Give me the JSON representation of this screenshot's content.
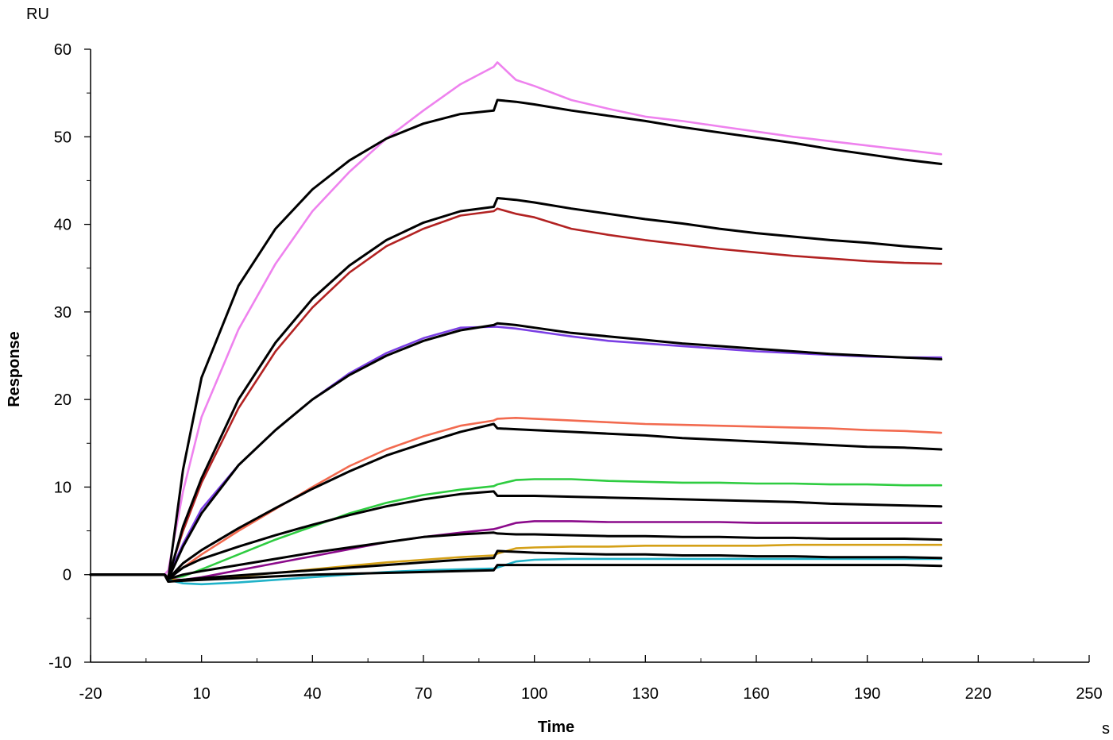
{
  "chart_data": {
    "type": "line",
    "title": "",
    "xlabel": "Time",
    "ylabel": "Response",
    "x_unit": "s",
    "y_unit": "RU",
    "xlim": [
      -20,
      250
    ],
    "ylim": [
      -10,
      60
    ],
    "x_ticks": [
      -20,
      10,
      40,
      70,
      100,
      130,
      160,
      190,
      220,
      250
    ],
    "y_ticks": [
      -10,
      0,
      10,
      20,
      30,
      40,
      50,
      60
    ],
    "grid": false,
    "legend": "none",
    "series": [
      {
        "color": "#ee82ee",
        "kind": "measured",
        "x": [
          -20,
          0,
          1,
          5,
          10,
          20,
          30,
          40,
          50,
          60,
          70,
          80,
          89,
          90,
          95,
          100,
          110,
          120,
          130,
          140,
          150,
          160,
          170,
          180,
          190,
          200,
          210
        ],
        "y": [
          0,
          0,
          0.5,
          9.5,
          18,
          28,
          35.5,
          41.5,
          46,
          49.8,
          53,
          56,
          58,
          58.5,
          56.5,
          55.8,
          54.2,
          53.2,
          52.3,
          51.8,
          51.2,
          50.6,
          50,
          49.5,
          49,
          48.5,
          48
        ]
      },
      {
        "color": "#b22222",
        "kind": "measured",
        "x": [
          -20,
          0,
          1,
          5,
          10,
          20,
          30,
          40,
          50,
          60,
          70,
          80,
          89,
          90,
          95,
          100,
          110,
          120,
          130,
          140,
          150,
          160,
          170,
          180,
          190,
          200,
          210
        ],
        "y": [
          0,
          0,
          -0.2,
          5,
          10.5,
          19,
          25.5,
          30.5,
          34.5,
          37.5,
          39.5,
          41,
          41.5,
          41.8,
          41.2,
          40.8,
          39.5,
          38.8,
          38.2,
          37.7,
          37.2,
          36.8,
          36.4,
          36.1,
          35.8,
          35.6,
          35.5
        ]
      },
      {
        "color": "#7b3fe4",
        "kind": "measured",
        "x": [
          -20,
          0,
          1,
          5,
          10,
          20,
          30,
          40,
          50,
          60,
          70,
          80,
          89,
          90,
          95,
          100,
          110,
          120,
          130,
          140,
          150,
          160,
          170,
          180,
          190,
          200,
          210
        ],
        "y": [
          0,
          0,
          -0.2,
          3.5,
          7.5,
          12.5,
          16.5,
          20,
          23,
          25.3,
          27,
          28.2,
          28.3,
          28.3,
          28.1,
          27.8,
          27.2,
          26.7,
          26.4,
          26.1,
          25.8,
          25.5,
          25.3,
          25.1,
          24.9,
          24.8,
          24.8
        ]
      },
      {
        "color": "#f26a4f",
        "kind": "measured",
        "x": [
          -20,
          0,
          1,
          5,
          10,
          20,
          30,
          40,
          50,
          60,
          70,
          80,
          89,
          90,
          95,
          100,
          110,
          120,
          130,
          140,
          150,
          160,
          170,
          180,
          190,
          200,
          210
        ],
        "y": [
          0,
          0,
          -0.3,
          0.8,
          2.3,
          5,
          7.5,
          10,
          12.4,
          14.3,
          15.8,
          17,
          17.6,
          17.8,
          17.9,
          17.8,
          17.6,
          17.4,
          17.2,
          17.1,
          17,
          16.9,
          16.8,
          16.7,
          16.5,
          16.4,
          16.2
        ]
      },
      {
        "color": "#2ecc40",
        "kind": "measured",
        "x": [
          -20,
          0,
          1,
          5,
          10,
          20,
          30,
          40,
          50,
          60,
          70,
          80,
          89,
          90,
          95,
          100,
          110,
          120,
          130,
          140,
          150,
          160,
          170,
          180,
          190,
          200,
          210
        ],
        "y": [
          0,
          0,
          -0.4,
          -0.2,
          0.6,
          2.3,
          4,
          5.5,
          7,
          8.2,
          9.1,
          9.7,
          10.1,
          10.3,
          10.8,
          10.9,
          10.9,
          10.7,
          10.6,
          10.5,
          10.5,
          10.4,
          10.4,
          10.3,
          10.3,
          10.2,
          10.2
        ]
      },
      {
        "color": "#8b0a8b",
        "kind": "measured",
        "x": [
          -20,
          0,
          1,
          5,
          10,
          20,
          30,
          40,
          50,
          60,
          70,
          80,
          89,
          90,
          95,
          100,
          110,
          120,
          130,
          140,
          150,
          160,
          170,
          180,
          190,
          200,
          210
        ],
        "y": [
          0,
          0,
          -0.5,
          -0.6,
          -0.3,
          0.5,
          1.3,
          2.1,
          2.9,
          3.7,
          4.3,
          4.8,
          5.2,
          5.3,
          5.9,
          6.1,
          6.1,
          6,
          6,
          6,
          6,
          5.9,
          5.9,
          5.9,
          5.9,
          5.9,
          5.9
        ]
      },
      {
        "color": "#d4a017",
        "kind": "measured",
        "x": [
          -20,
          0,
          1,
          5,
          10,
          20,
          30,
          40,
          50,
          60,
          70,
          80,
          89,
          90,
          95,
          100,
          110,
          120,
          130,
          140,
          150,
          160,
          170,
          180,
          190,
          200,
          210
        ],
        "y": [
          0,
          0,
          -0.5,
          -0.7,
          -0.6,
          -0.2,
          0.2,
          0.6,
          1,
          1.4,
          1.7,
          2,
          2.2,
          2.4,
          3,
          3.1,
          3.2,
          3.2,
          3.3,
          3.3,
          3.3,
          3.3,
          3.4,
          3.4,
          3.4,
          3.4,
          3.4
        ]
      },
      {
        "color": "#20b2c8",
        "kind": "measured",
        "x": [
          -20,
          0,
          1,
          5,
          10,
          20,
          30,
          40,
          50,
          60,
          70,
          80,
          89,
          90,
          95,
          100,
          110,
          120,
          130,
          140,
          150,
          160,
          170,
          180,
          190,
          200,
          210
        ],
        "y": [
          0,
          0,
          -0.6,
          -1,
          -1.1,
          -0.9,
          -0.6,
          -0.3,
          0,
          0.3,
          0.5,
          0.6,
          0.7,
          0.8,
          1.5,
          1.7,
          1.8,
          1.8,
          1.8,
          1.8,
          1.8,
          1.8,
          1.8,
          1.8,
          1.8,
          1.8,
          1.8
        ]
      },
      {
        "color": "#000000",
        "kind": "fit",
        "x": [
          -20,
          0,
          1,
          5,
          10,
          20,
          30,
          40,
          50,
          60,
          70,
          80,
          89,
          90,
          95,
          100,
          110,
          120,
          130,
          140,
          150,
          160,
          170,
          180,
          190,
          200,
          210
        ],
        "y": [
          0,
          0,
          -0.5,
          12,
          22.5,
          33,
          39.5,
          44,
          47.3,
          49.8,
          51.5,
          52.6,
          53,
          54.2,
          54,
          53.7,
          53,
          52.4,
          51.8,
          51.1,
          50.5,
          49.9,
          49.3,
          48.6,
          48,
          47.4,
          46.9
        ]
      },
      {
        "color": "#000000",
        "kind": "fit",
        "x": [
          -20,
          0,
          1,
          5,
          10,
          20,
          30,
          40,
          50,
          60,
          70,
          80,
          89,
          90,
          95,
          100,
          110,
          120,
          130,
          140,
          150,
          160,
          170,
          180,
          190,
          200,
          210
        ],
        "y": [
          0,
          0,
          -0.5,
          5.5,
          11,
          20,
          26.5,
          31.5,
          35.3,
          38.2,
          40.2,
          41.5,
          42,
          43,
          42.8,
          42.5,
          41.8,
          41.2,
          40.6,
          40.1,
          39.5,
          39,
          38.6,
          38.2,
          37.9,
          37.5,
          37.2
        ]
      },
      {
        "color": "#000000",
        "kind": "fit",
        "x": [
          -20,
          0,
          1,
          5,
          10,
          20,
          30,
          40,
          50,
          60,
          70,
          80,
          89,
          90,
          95,
          100,
          110,
          120,
          130,
          140,
          150,
          160,
          170,
          180,
          190,
          200,
          210
        ],
        "y": [
          0,
          0,
          -0.5,
          3.2,
          7,
          12.5,
          16.5,
          20,
          22.8,
          25,
          26.7,
          27.9,
          28.5,
          28.7,
          28.5,
          28.2,
          27.6,
          27.2,
          26.8,
          26.4,
          26.1,
          25.8,
          25.5,
          25.2,
          25,
          24.8,
          24.6
        ]
      },
      {
        "color": "#000000",
        "kind": "fit",
        "x": [
          -20,
          0,
          1,
          5,
          10,
          20,
          30,
          40,
          50,
          60,
          70,
          80,
          89,
          90,
          95,
          100,
          110,
          120,
          130,
          140,
          150,
          160,
          170,
          180,
          190,
          200,
          210
        ],
        "y": [
          0,
          0,
          -0.5,
          1.3,
          2.8,
          5.3,
          7.6,
          9.8,
          11.8,
          13.6,
          15,
          16.3,
          17.2,
          16.7,
          16.6,
          16.5,
          16.3,
          16.1,
          15.9,
          15.6,
          15.4,
          15.2,
          15,
          14.8,
          14.6,
          14.5,
          14.3
        ]
      },
      {
        "color": "#000000",
        "kind": "fit",
        "x": [
          -20,
          0,
          1,
          5,
          10,
          20,
          30,
          40,
          50,
          60,
          70,
          80,
          89,
          90,
          95,
          100,
          110,
          120,
          130,
          140,
          150,
          160,
          170,
          180,
          190,
          200,
          210
        ],
        "y": [
          0,
          0,
          -0.5,
          0.8,
          1.8,
          3.2,
          4.5,
          5.7,
          6.8,
          7.8,
          8.6,
          9.2,
          9.5,
          9,
          9,
          9,
          8.9,
          8.8,
          8.7,
          8.6,
          8.5,
          8.4,
          8.3,
          8.1,
          8,
          7.9,
          7.8
        ]
      },
      {
        "color": "#000000",
        "kind": "fit",
        "x": [
          -20,
          0,
          1,
          5,
          10,
          20,
          30,
          40,
          50,
          60,
          70,
          80,
          89,
          90,
          95,
          100,
          110,
          120,
          130,
          140,
          150,
          160,
          170,
          180,
          190,
          200,
          210
        ],
        "y": [
          0,
          0,
          -0.5,
          0,
          0.4,
          1.1,
          1.8,
          2.5,
          3.1,
          3.7,
          4.3,
          4.6,
          4.8,
          4.7,
          4.6,
          4.6,
          4.5,
          4.4,
          4.4,
          4.3,
          4.3,
          4.2,
          4.2,
          4.1,
          4.1,
          4.1,
          4
        ]
      },
      {
        "color": "#000000",
        "kind": "fit",
        "x": [
          -20,
          0,
          1,
          5,
          10,
          20,
          30,
          40,
          50,
          60,
          70,
          80,
          89,
          90,
          95,
          100,
          110,
          120,
          130,
          140,
          150,
          160,
          170,
          180,
          190,
          200,
          210
        ],
        "y": [
          0,
          0,
          -0.8,
          -0.6,
          -0.4,
          -0.1,
          0.2,
          0.5,
          0.8,
          1.1,
          1.4,
          1.7,
          1.9,
          2.7,
          2.6,
          2.5,
          2.4,
          2.3,
          2.3,
          2.2,
          2.2,
          2.1,
          2.1,
          2,
          2,
          2,
          1.9
        ]
      },
      {
        "color": "#000000",
        "kind": "fit",
        "x": [
          -20,
          0,
          1,
          5,
          10,
          20,
          30,
          40,
          50,
          60,
          70,
          80,
          89,
          90,
          95,
          100,
          110,
          120,
          130,
          140,
          150,
          160,
          170,
          180,
          190,
          200,
          210
        ],
        "y": [
          0,
          0,
          -0.8,
          -0.7,
          -0.6,
          -0.4,
          -0.2,
          0,
          0.1,
          0.2,
          0.3,
          0.4,
          0.5,
          1.1,
          1.1,
          1.1,
          1.1,
          1.1,
          1.1,
          1.1,
          1.1,
          1.1,
          1.1,
          1.1,
          1.1,
          1.1,
          1
        ]
      }
    ]
  }
}
